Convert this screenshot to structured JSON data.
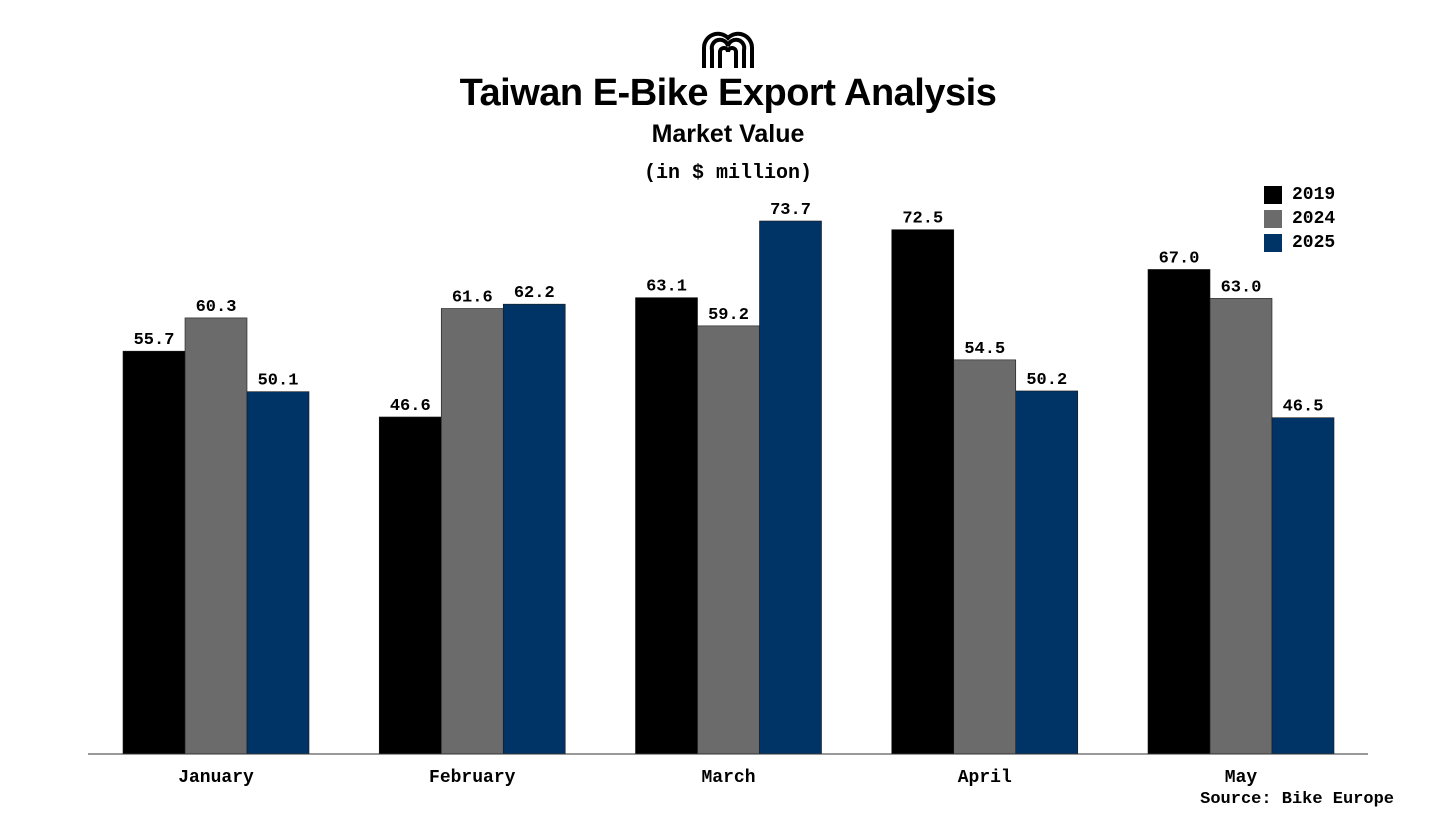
{
  "header": {
    "title": "Taiwan E-Bike Export Analysis",
    "subtitle": "Market Value",
    "unit": "(in $ million)",
    "logo_icon": "double-arch-logo-icon"
  },
  "source": "Source: Bike Europe",
  "colors": {
    "2019": "#000000",
    "2024": "#6b6b6b",
    "2025": "#003366"
  },
  "chart_data": {
    "type": "bar",
    "title": "Taiwan E-Bike Export Analysis",
    "subtitle": "Market Value",
    "ylabel": "(in $ million)",
    "xlabel": "",
    "categories": [
      "January",
      "February",
      "March",
      "April",
      "May"
    ],
    "series": [
      {
        "name": "2019",
        "color": "#000000",
        "values": [
          55.7,
          46.6,
          63.1,
          72.5,
          67.0
        ]
      },
      {
        "name": "2024",
        "color": "#6b6b6b",
        "values": [
          60.3,
          61.6,
          59.2,
          54.5,
          63.0
        ]
      },
      {
        "name": "2025",
        "color": "#003366",
        "values": [
          50.1,
          62.2,
          73.7,
          50.2,
          46.5
        ]
      }
    ],
    "ylim": [
      0,
      73.7
    ],
    "grid": false,
    "legend": "top-right",
    "data_labels": true
  }
}
